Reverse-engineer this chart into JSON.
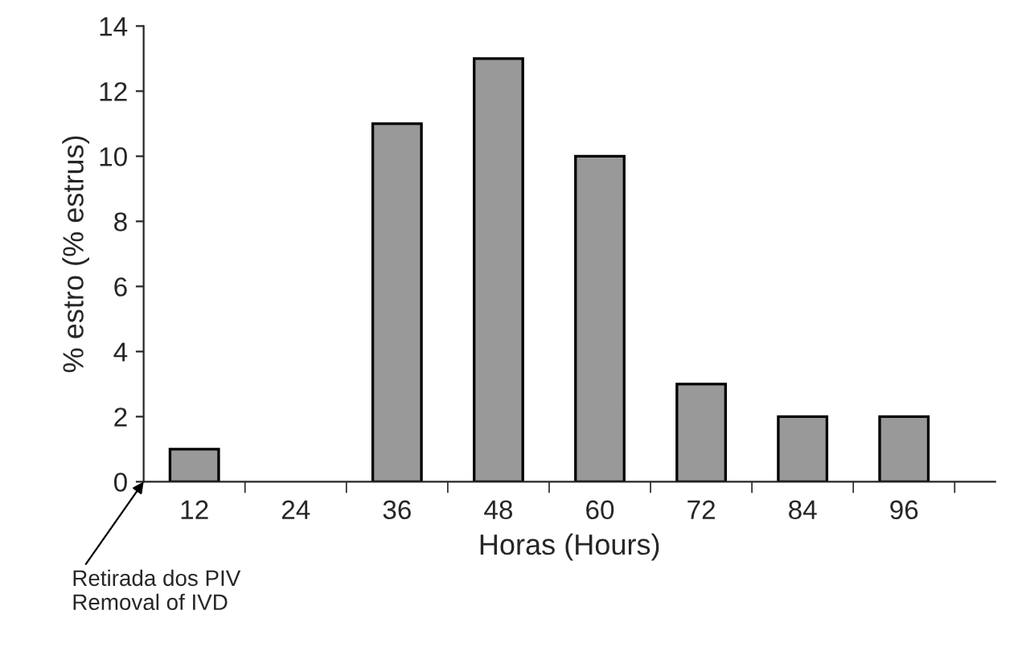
{
  "chart_data": {
    "type": "bar",
    "xlabel": "Horas (Hours)",
    "ylabel": "% estro (% estrus)",
    "categories": [
      "12",
      "24",
      "36",
      "48",
      "60",
      "72",
      "84",
      "96"
    ],
    "values": [
      1,
      null,
      11,
      13,
      10,
      3,
      2,
      2
    ],
    "color": "#999999",
    "ylim": [
      0,
      14
    ],
    "yticks": [
      0,
      2,
      4,
      6,
      8,
      10,
      12,
      14
    ],
    "grid": false,
    "legend": false,
    "annotations": [
      "Retirada dos PIV\nRemoval of IVD"
    ]
  }
}
